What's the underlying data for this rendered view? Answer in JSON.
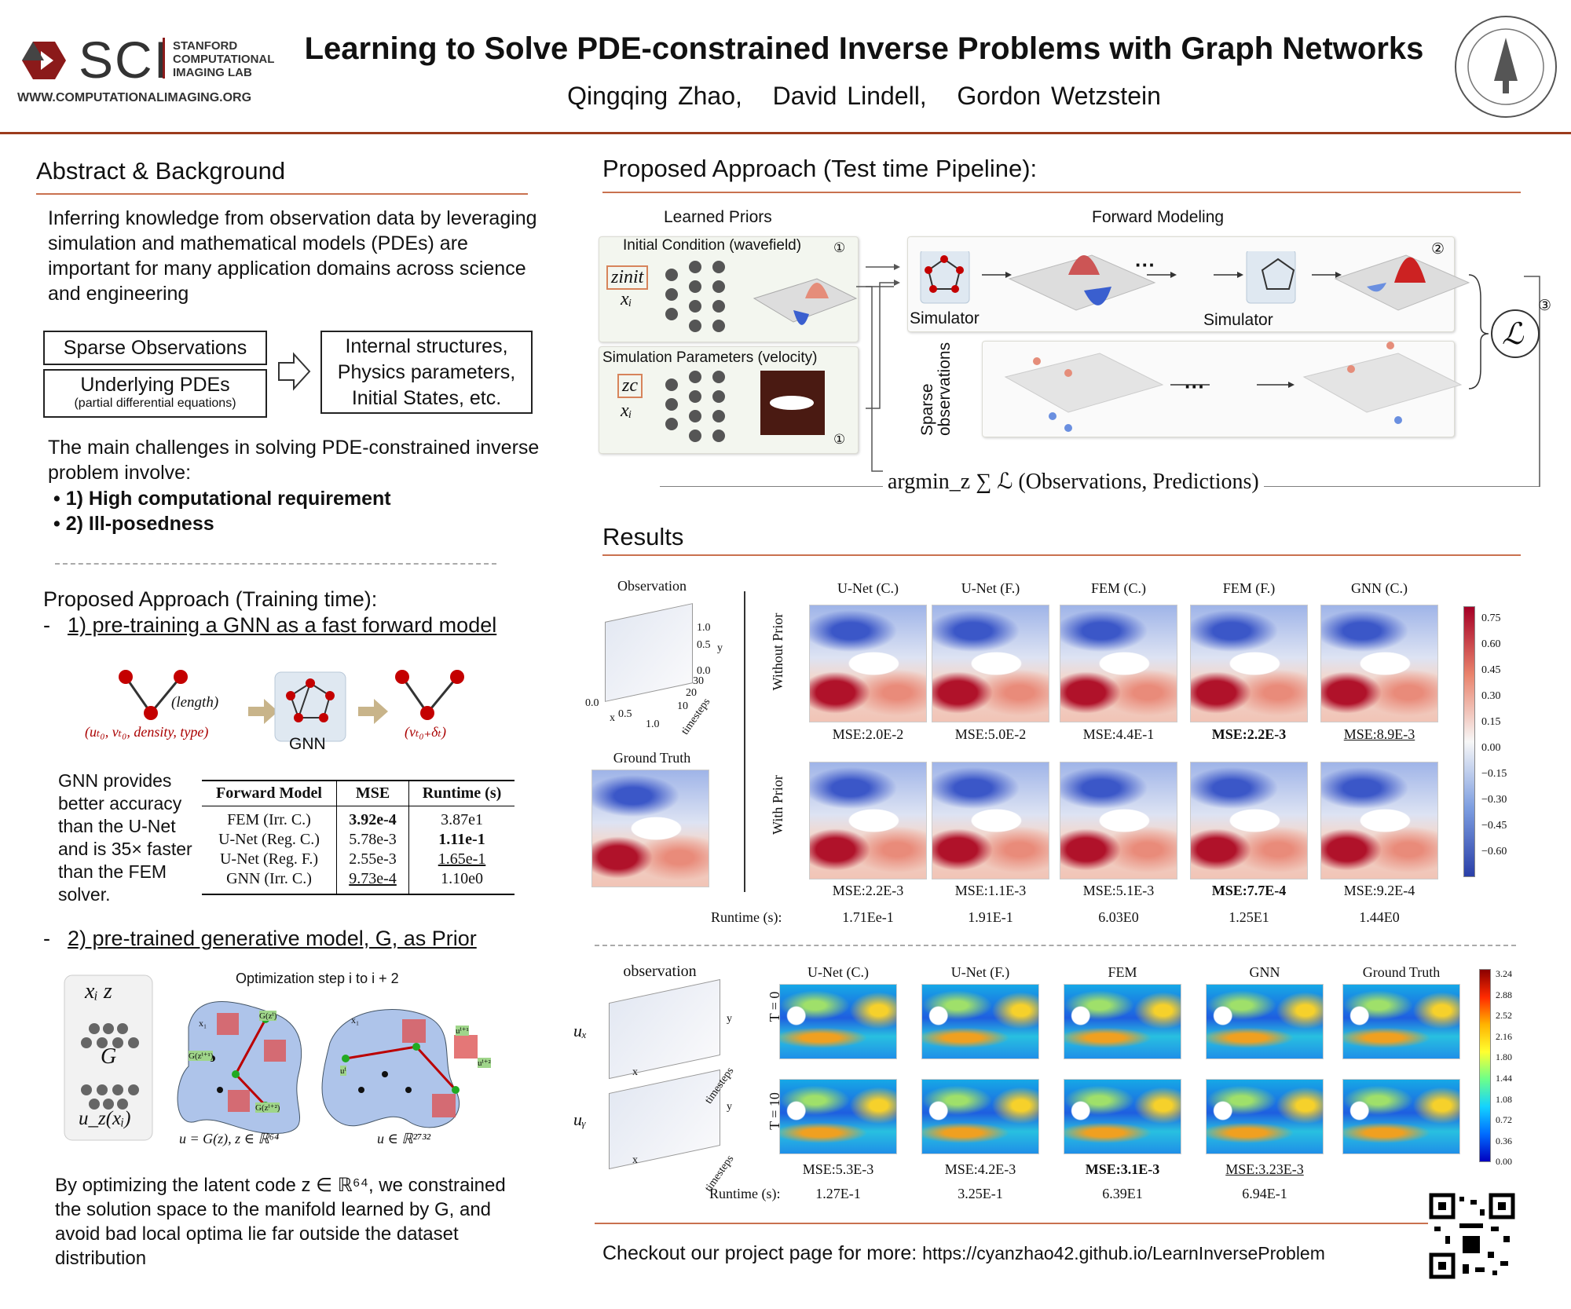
{
  "header": {
    "logo": "SCI",
    "lab": [
      "STANFORD",
      "COMPUTATIONAL",
      "IMAGING LAB"
    ],
    "url": "WWW.COMPUTATIONALIMAGING.ORG",
    "title": "Learning to Solve PDE-constrained Inverse Problems with Graph Networks",
    "authors": [
      "Qingqing Zhao,",
      "David Lindell,",
      "Gordon Wetzstein"
    ]
  },
  "abstract": {
    "heading": "Abstract & Background",
    "paragraph": "Inferring knowledge from observation data by leveraging simulation and mathematical models (PDEs) are important for many application domains across science and engineering",
    "box_sparse": "Sparse Observations",
    "box_pde": "Underlying PDEs",
    "box_pde_note": "(partial differential equations)",
    "box_out": [
      "Internal structures,",
      "Physics parameters,",
      "Initial States, etc."
    ],
    "challenges": "The main challenges in solving PDE-constrained inverse problem involve:",
    "bullets": [
      "• 1) High computational requirement",
      "• 2) Ill-posedness"
    ]
  },
  "training": {
    "heading": "Proposed Approach (Training time):",
    "dash": "-",
    "step1": "1) pre-training a GNN as a fast forward model",
    "edge_label": "(length)",
    "input_label": "(uₜ₀, vₜ₀, density, type)",
    "gnn_label": "GNN",
    "output_label": "(vₜ₀₊δₜ)",
    "gnn_text": "GNN provides better accuracy than the U-Net and is 35× faster than the FEM solver.",
    "table": {
      "header": [
        "Forward Model",
        "MSE",
        "Runtime (s)"
      ],
      "rows": [
        [
          "FEM (Irr. C.)",
          "3.92e-4",
          "3.87e1"
        ],
        [
          "U-Net (Reg. C.)",
          "5.78e-3",
          "1.11e-1"
        ],
        [
          "U-Net (Reg. F.)",
          "2.55e-3",
          "1.65e-1"
        ],
        [
          "GNN (Irr. C.)",
          "9.73e-4",
          "1.10e0"
        ]
      ]
    },
    "step2": "2) pre-trained generative model, G, as Prior",
    "opt_title": "Optimization step i  to i + 2",
    "gen_inputs": "xᵢ  z",
    "gen_g": "G",
    "gen_output": "u_z(xᵢ)",
    "manifold_left": "u = G(z), z ∈ ℝ⁶⁴",
    "manifold_right": "u ∈ ℝ²⁷³²",
    "tags_left": [
      "G(zⁱ)",
      "G(zⁱ⁺¹)",
      "G(zⁱ⁺²)",
      "x₁"
    ],
    "tags_right": [
      "uⁱ",
      "uⁱ⁺¹",
      "uⁱ⁺²",
      "x₁"
    ],
    "closing": "By optimizing the latent code z ∈ ℝ⁶⁴, we constrained the solution space to the manifold learned by G, and avoid bad local optima lie far outside the dataset distribution"
  },
  "pipeline": {
    "heading": "Proposed Approach (Test time Pipeline):",
    "learned_priors": "Learned Priors",
    "forward_modeling": "Forward Modeling",
    "initial_condition": "Initial Condition (wavefield)",
    "simulation_parameters": "Simulation Parameters (velocity)",
    "z_init": "zinit",
    "z_c": "zc",
    "x_i": "xᵢ",
    "simulator": "Simulator",
    "sparse_observations": "Sparse observations",
    "loss": "ℒ",
    "ellipsis": "···",
    "markers": [
      "①",
      "①",
      "②",
      "③"
    ],
    "objective": "argmin_z ∑ ℒ (Observations, Predictions)"
  },
  "results": {
    "heading": "Results",
    "observation": "Observation",
    "ground_truth": "Ground Truth",
    "obs_axis": [
      "1.0",
      "0.5",
      "0.0",
      "y",
      "30",
      "20",
      "10",
      "timesteps",
      "0.0",
      "0.5",
      "1.0",
      "x"
    ],
    "columns": [
      "U-Net (C.)",
      "U-Net (F.)",
      "FEM (C.)",
      "FEM (F.)",
      "GNN (C.)"
    ],
    "rows": [
      "Without Prior",
      "With Prior"
    ],
    "mse_without": [
      "MSE:2.0E-2",
      "MSE:5.0E-2",
      "MSE:4.4E-1",
      "MSE:2.2E-3",
      "MSE:8.9E-3"
    ],
    "mse_with": [
      "MSE:2.2E-3",
      "MSE:1.1E-3",
      "MSE:5.1E-3",
      "MSE:7.7E-4",
      "MSE:9.2E-4"
    ],
    "runtime_label": "Runtime (s):",
    "runtime": [
      "1.71Ee-1",
      "1.91E-1",
      "6.03E0",
      "1.25E1",
      "1.44E0"
    ],
    "colorbar": [
      "0.75",
      "0.60",
      "0.45",
      "0.30",
      "0.15",
      "0.00",
      "−0.15",
      "−0.30",
      "−0.45",
      "−0.60"
    ]
  },
  "flow": {
    "observation": "observation",
    "axis": [
      "y",
      "x",
      "timesteps"
    ],
    "fields": [
      "uₓ",
      "uᵧ"
    ],
    "columns": [
      "U-Net (C.)",
      "U-Net (F.)",
      "FEM",
      "GNN",
      "Ground Truth"
    ],
    "rows": [
      "T = 0",
      "T = 10"
    ],
    "mse": [
      "MSE:5.3E-3",
      "MSE:4.2E-3",
      "MSE:3.1E-3",
      "MSE:3.23E-3"
    ],
    "runtime_label": "Runtime (s):",
    "runtime": [
      "1.27E-1",
      "3.25E-1",
      "6.39E1",
      "6.94E-1"
    ],
    "colorbar": [
      "3.24",
      "2.88",
      "2.52",
      "2.16",
      "1.80",
      "1.44",
      "1.08",
      "0.72",
      "0.36",
      "0.00"
    ]
  },
  "footer": {
    "text": "Checkout our project page for more:",
    "link": "https://cyanzhao42.github.io/LearnInverseProblem"
  }
}
